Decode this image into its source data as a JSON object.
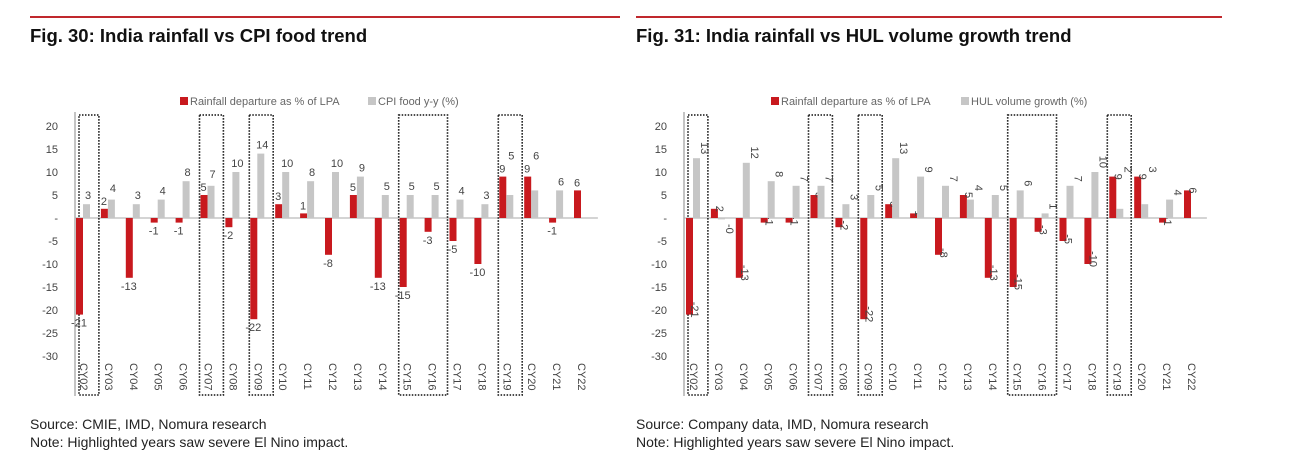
{
  "chart_data": [
    {
      "type": "bar",
      "title": "Fig. 30: India rainfall vs CPI food trend",
      "ylim": [
        -30,
        20
      ],
      "yticks": [
        20,
        15,
        10,
        5,
        0,
        -5,
        -10,
        -15,
        -20,
        -25,
        -30
      ],
      "categories": [
        "CY02",
        "CY03",
        "CY04",
        "CY05",
        "CY06",
        "CY07",
        "CY08",
        "CY09",
        "CY10",
        "CY11",
        "CY12",
        "CY13",
        "CY14",
        "CY15",
        "CY16",
        "CY17",
        "CY18",
        "CY19",
        "CY20",
        "CY21",
        "CY22"
      ],
      "series": [
        {
          "name": "Rainfall departure as % of LPA",
          "color": "#c8191e",
          "values": [
            -21,
            2,
            -13,
            -1,
            -1,
            5,
            -2,
            -22,
            3,
            1,
            -8,
            5,
            -13,
            -15,
            -3,
            -5,
            -10,
            9,
            9,
            -1,
            6
          ]
        },
        {
          "name": "CPI food y-y (%)",
          "color": "#c6c6c6",
          "values": [
            3,
            4,
            3,
            4,
            8,
            7,
            10,
            14,
            10,
            8,
            10,
            9,
            5,
            5,
            5,
            4,
            3,
            5,
            6,
            6,
            null
          ]
        }
      ],
      "highlighted": [
        "CY02",
        "CY07",
        "CY09",
        "CY15",
        "CY16",
        "CY19"
      ],
      "legend": "top",
      "source": "Source: CMIE, IMD, Nomura research",
      "note": "Note: Highlighted years saw severe El Nino impact.",
      "rotated_labels": false
    },
    {
      "type": "bar",
      "title": "Fig. 31: India rainfall vs HUL volume growth trend",
      "ylim": [
        -30,
        20
      ],
      "yticks": [
        20,
        15,
        10,
        5,
        0,
        -5,
        -10,
        -15,
        -20,
        -25,
        -30
      ],
      "categories": [
        "CY02",
        "CY03",
        "CY04",
        "CY05",
        "CY06",
        "CY07",
        "CY08",
        "CY09",
        "CY10",
        "CY11",
        "CY12",
        "CY13",
        "CY14",
        "CY15",
        "CY16",
        "CY17",
        "CY18",
        "CY19",
        "CY20",
        "CY21",
        "CY22"
      ],
      "series": [
        {
          "name": "Rainfall departure as % of LPA",
          "color": "#c8191e",
          "values": [
            -21,
            2,
            -13,
            -1,
            -1,
            5,
            -2,
            -22,
            3,
            1,
            -8,
            5,
            -13,
            -15,
            -3,
            -5,
            -10,
            9,
            9,
            -1,
            6
          ]
        },
        {
          "name": "HUL volume growth (%)",
          "color": "#c6c6c6",
          "values": [
            13,
            -0.3,
            12,
            8,
            7,
            7,
            3,
            5,
            13,
            9,
            7,
            4,
            5,
            6,
            1,
            7,
            10,
            2,
            3,
            4,
            null
          ]
        }
      ],
      "highlighted": [
        "CY02",
        "CY07",
        "CY09",
        "CY15",
        "CY16",
        "CY19"
      ],
      "legend": "top",
      "source": "Source: Company data, IMD, Nomura research",
      "note": "Note: Highlighted years saw severe El Nino impact.",
      "rotated_labels": true
    }
  ]
}
